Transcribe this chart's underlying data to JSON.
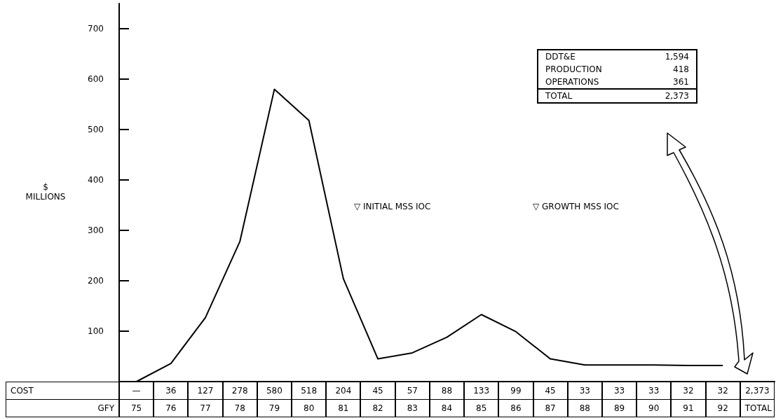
{
  "chart_data": {
    "type": "line",
    "ylabel": "$ MILLIONS",
    "xlabel": "GFY",
    "categories": [
      "75",
      "76",
      "77",
      "78",
      "79",
      "80",
      "81",
      "82",
      "83",
      "84",
      "85",
      "86",
      "87",
      "88",
      "89",
      "90",
      "91",
      "92",
      "TOTAL"
    ],
    "values": [
      0,
      36,
      127,
      278,
      580,
      518,
      204,
      45,
      57,
      88,
      133,
      99,
      45,
      33,
      33,
      33,
      32,
      32,
      null
    ],
    "value_labels": [
      "—",
      "36",
      "127",
      "278",
      "580",
      "518",
      "204",
      "45",
      "57",
      "88",
      "133",
      "99",
      "45",
      "33",
      "33",
      "33",
      "32",
      "32",
      "2,373"
    ],
    "color": "#000000",
    "marker": "none",
    "line_style": "solid",
    "grid": false,
    "ylim": [
      0,
      750
    ],
    "yticks": [
      100,
      200,
      300,
      400,
      500,
      600,
      700
    ],
    "annotations": [
      "COST",
      "▽ INITIAL MSS IOC",
      "▽ GROWTH MSS IOC",
      "DDT&E",
      "1,594",
      "PRODUCTION",
      "418",
      "OPERATIONS",
      "361",
      "TOTAL",
      "2,373"
    ]
  }
}
